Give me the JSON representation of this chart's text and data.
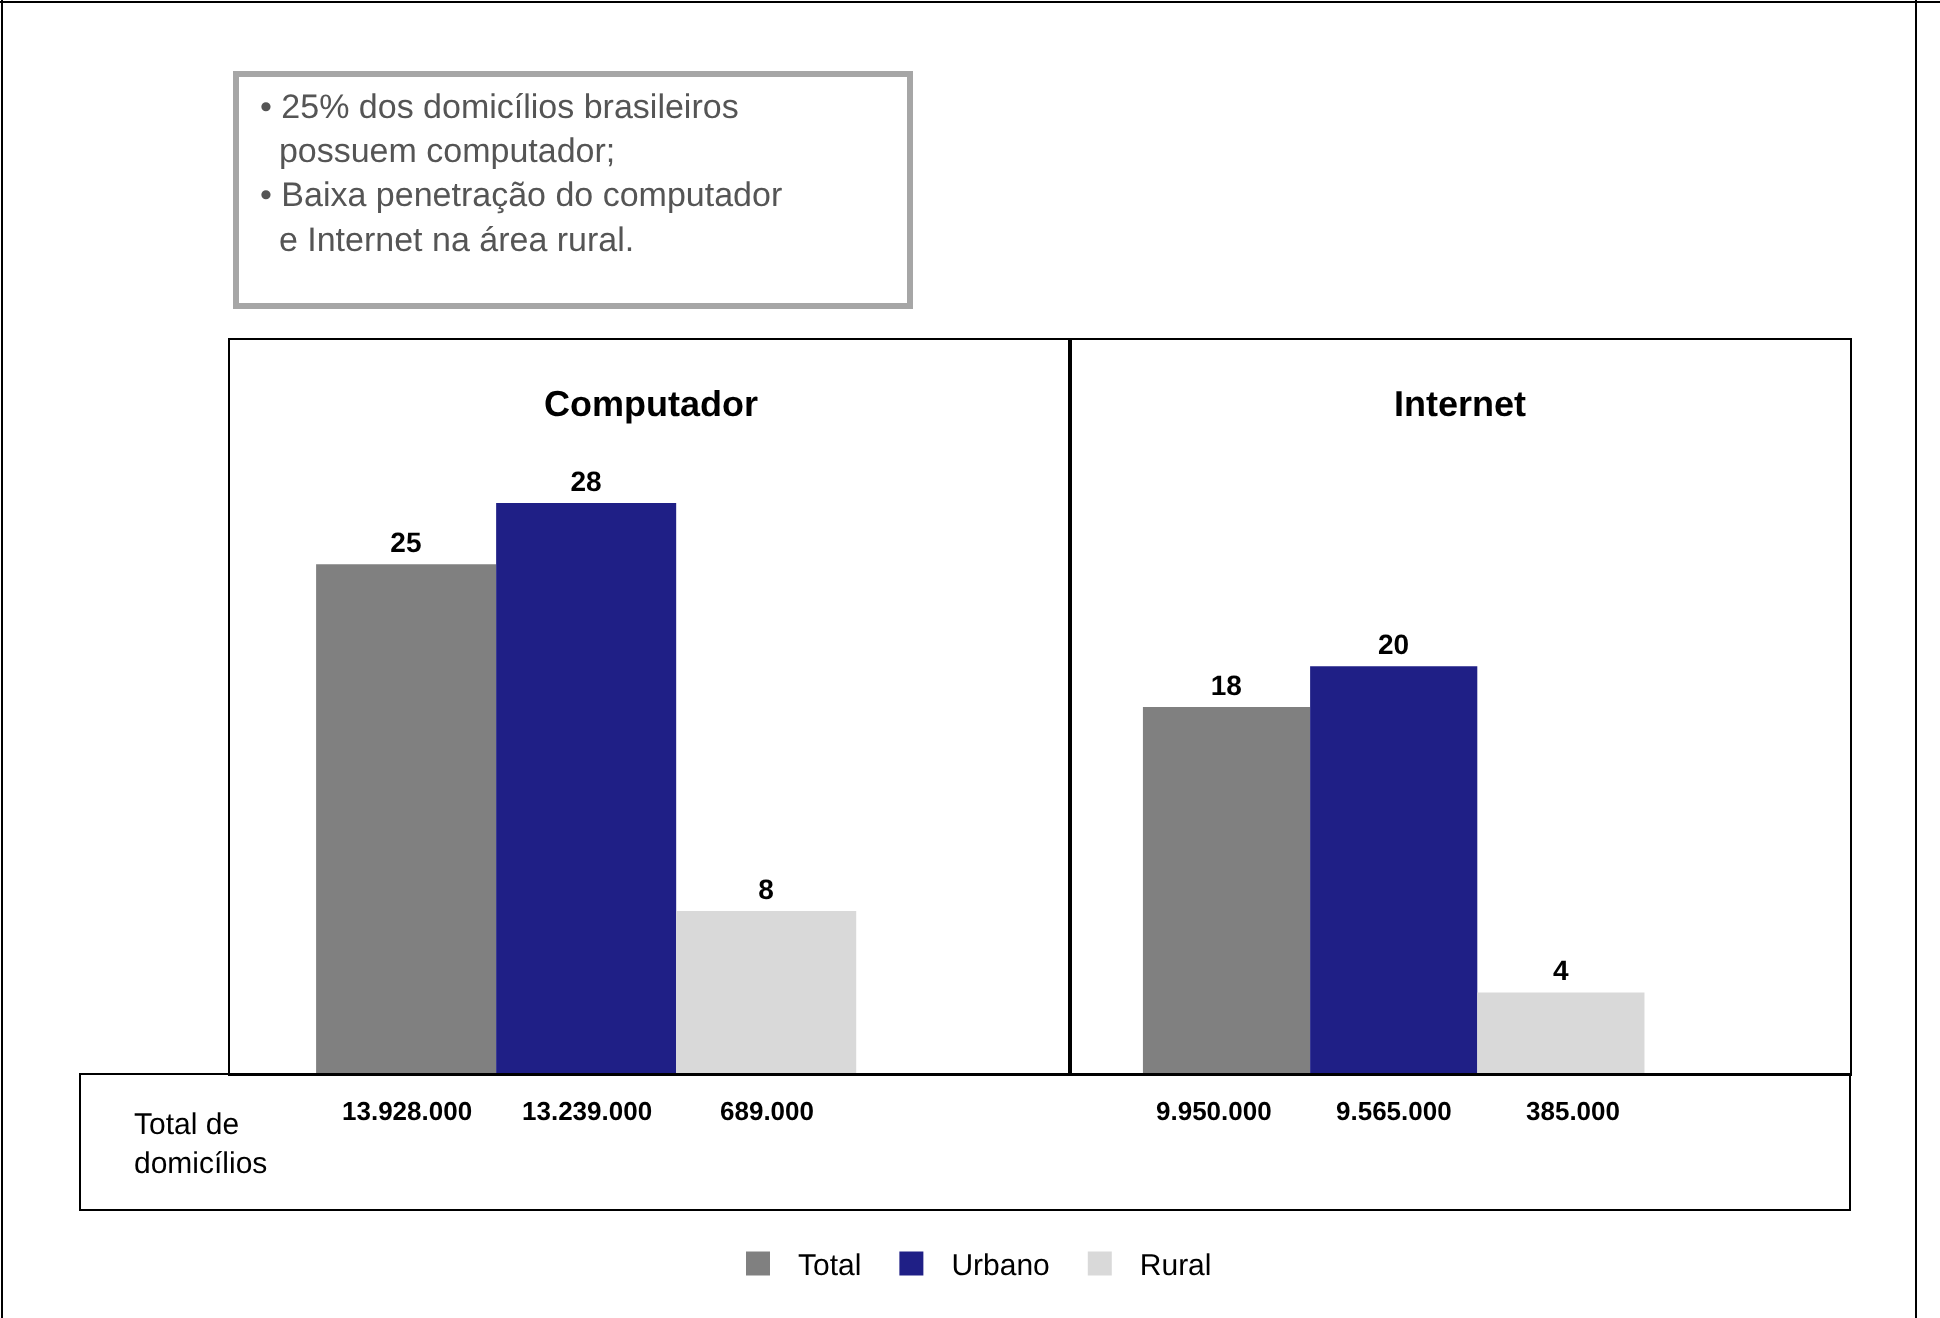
{
  "chart_data": [
    {
      "type": "bar",
      "title": "Computador",
      "categories": [
        null
      ],
      "ylim": [
        0,
        36
      ],
      "data_labels": true,
      "legend": "bottom",
      "series": [
        {
          "name": "Total",
          "color": "#808080",
          "values": [
            25
          ]
        },
        {
          "name": "Urbano",
          "color": "#1f1f86",
          "values": [
            28
          ]
        },
        {
          "name": "Rural",
          "color": "#d9d9d9",
          "values": [
            8
          ]
        }
      ],
      "annotations": [
        "• 25% dos domicílios brasileiros\n  possuem computador;\n• Baixa penetração do computador\n  e Internet na área rural.",
        "Total de\ndomicílios",
        "13.928.000",
        "13.239.000",
        "689.000"
      ]
    },
    {
      "type": "bar",
      "title": "Internet",
      "categories": [
        null
      ],
      "ylim": [
        0,
        36
      ],
      "data_labels": true,
      "legend": "bottom",
      "series": [
        {
          "name": "Total",
          "color": "#808080",
          "values": [
            18
          ]
        },
        {
          "name": "Urbano",
          "color": "#1f1f86",
          "values": [
            20
          ]
        },
        {
          "name": "Rural",
          "color": "#d9d9d9",
          "values": [
            4
          ]
        }
      ],
      "annotations": [
        "9.950.000",
        "9.565.000",
        "385.000"
      ]
    }
  ]
}
